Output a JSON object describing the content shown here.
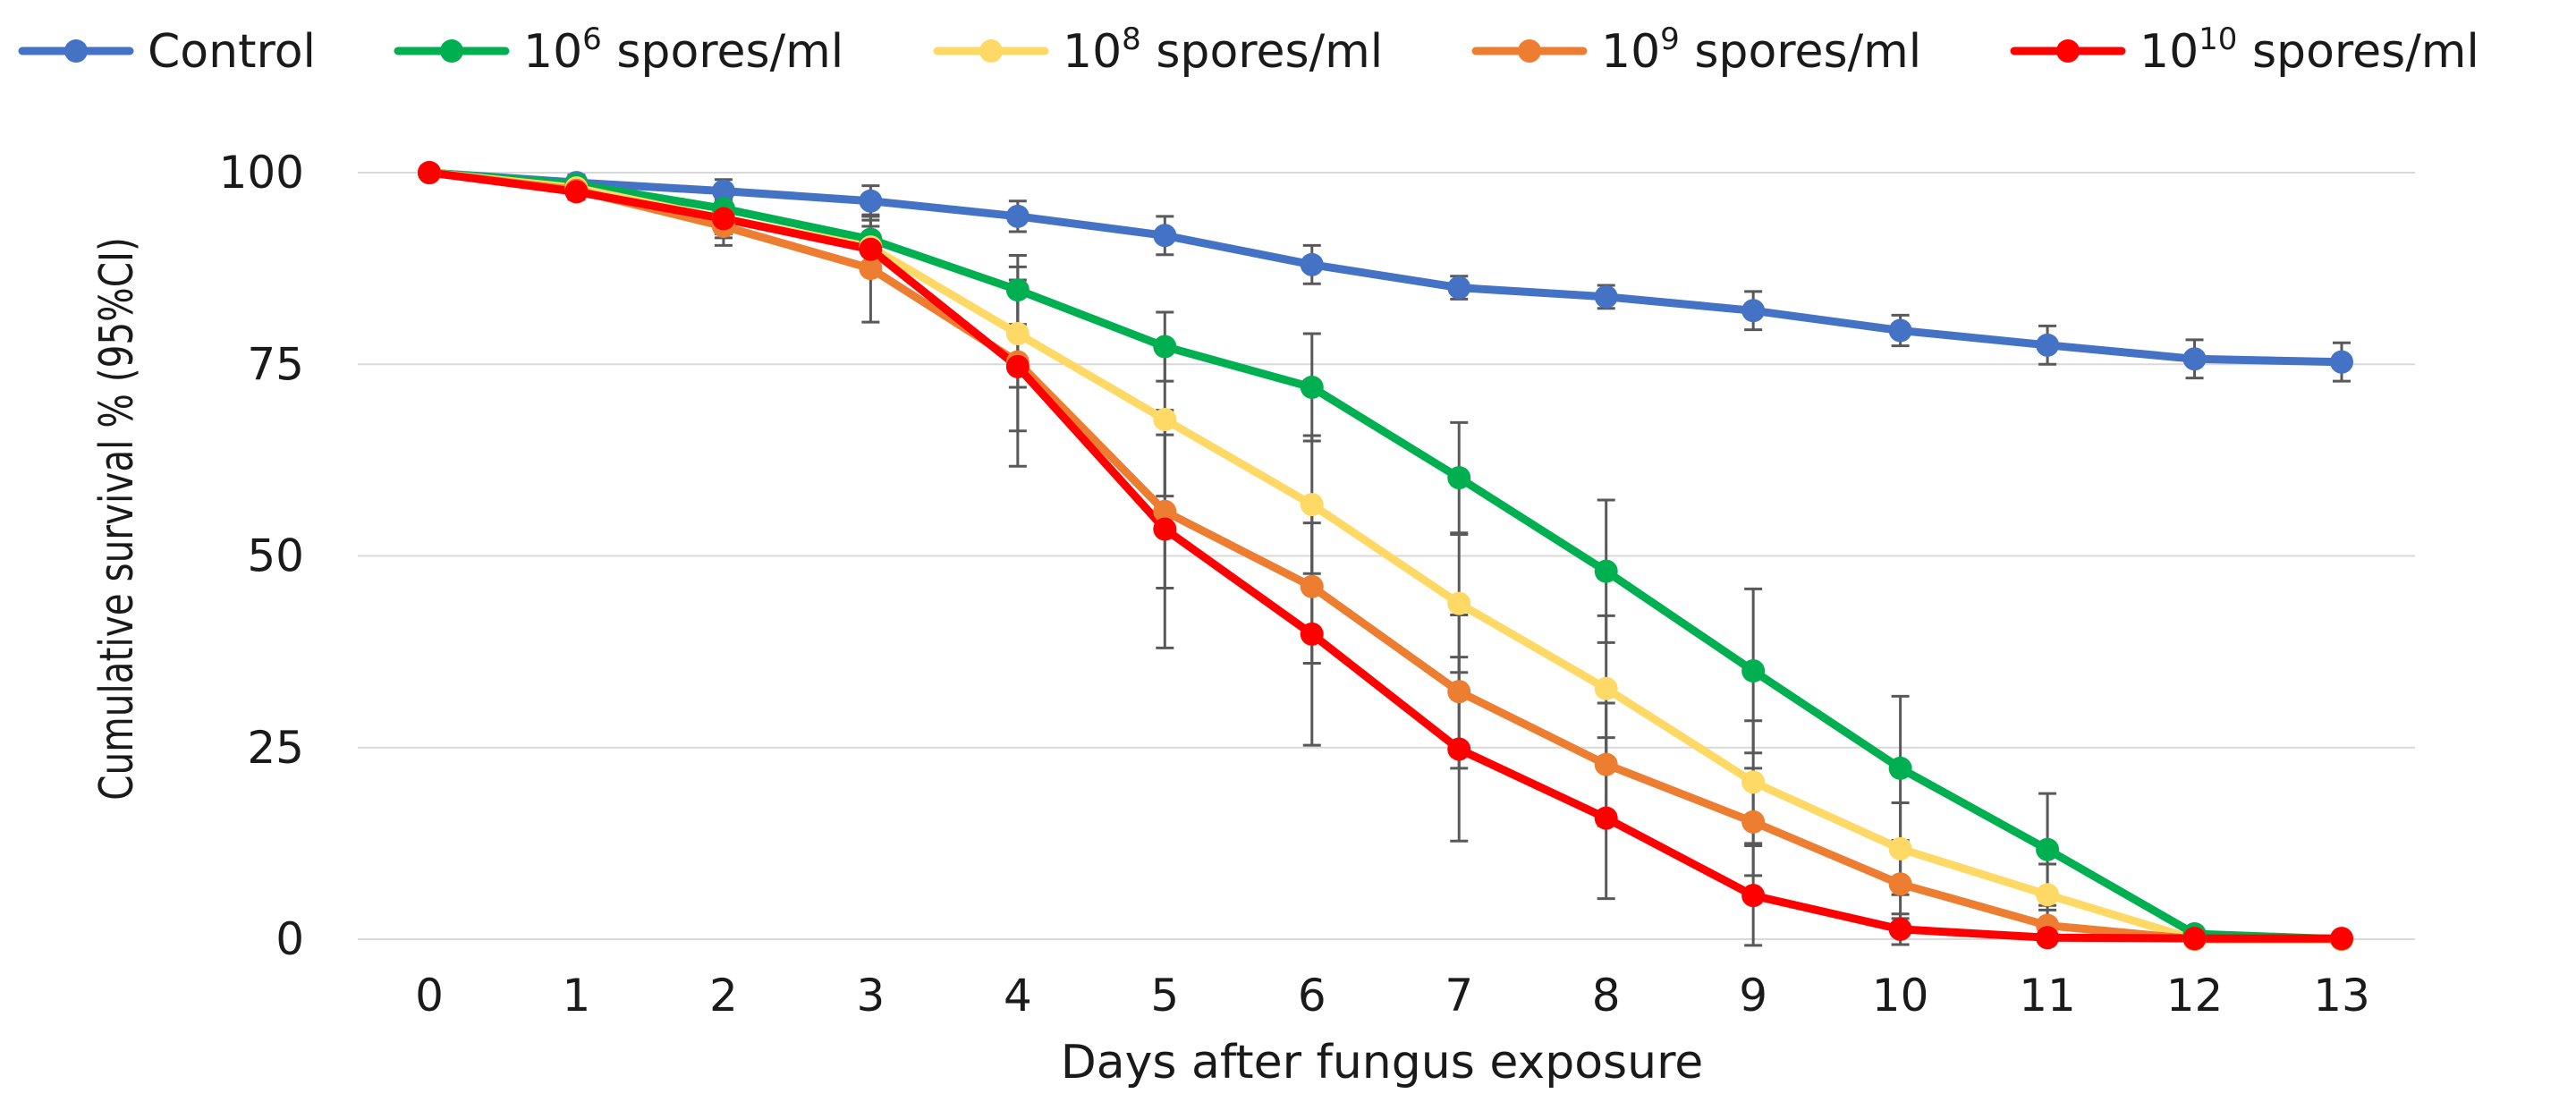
{
  "chart_data": {
    "type": "line",
    "title": "",
    "xlabel": "Days after fungus exposure",
    "ylabel": "Cumulative survival % (95%CI)",
    "x": [
      0,
      1,
      2,
      3,
      4,
      5,
      6,
      7,
      8,
      9,
      10,
      11,
      12,
      13
    ],
    "x_tick_labels": [
      "0",
      "1",
      "2",
      "3",
      "4",
      "5",
      "6",
      "7",
      "8",
      "9",
      "10",
      "11",
      "12",
      "13"
    ],
    "y_ticks": [
      0,
      25,
      50,
      75,
      100
    ],
    "y_tick_labels": [
      "0",
      "25",
      "50",
      "75",
      "100"
    ],
    "ylim": [
      0,
      100
    ],
    "xlim": [
      0,
      13
    ],
    "grid": "horizontal",
    "legend_position": "top",
    "series": [
      {
        "name": "Control",
        "legend_base": "Control",
        "legend_sup": "",
        "legend_rest": "",
        "color": "#4472C4",
        "values": [
          100,
          98.7,
          97.6,
          96.3,
          94.3,
          91.8,
          88.0,
          85.0,
          83.8,
          82.0,
          79.4,
          77.5,
          75.7,
          75.3
        ],
        "ci": [
          0,
          1.0,
          1.5,
          2.0,
          2.0,
          2.5,
          2.5,
          1.5,
          1.5,
          2.5,
          2.0,
          2.5,
          2.5,
          2.5
        ]
      },
      {
        "name": "10^6 spores/ml",
        "legend_base": "10",
        "legend_sup": "6",
        "legend_rest": " spores/ml",
        "color": "#00B050",
        "values": [
          100,
          98.5,
          95.3,
          91.3,
          84.7,
          77.3,
          72.0,
          60.2,
          48.0,
          35.0,
          22.3,
          11.7,
          0.7,
          0
        ],
        "ci": [
          0,
          1.0,
          2.0,
          3.0,
          4.5,
          4.5,
          7.0,
          7.2,
          9.3,
          10.7,
          9.4,
          7.3,
          0.5,
          0
        ]
      },
      {
        "name": "10^8 spores/ml",
        "legend_base": "10",
        "legend_sup": "8",
        "legend_rest": " spores/ml",
        "color": "#FFD966",
        "values": [
          100,
          98.0,
          94.0,
          90.3,
          79.0,
          67.8,
          56.7,
          43.8,
          32.7,
          20.5,
          11.8,
          5.8,
          0,
          0
        ],
        "ci": [
          0,
          1.0,
          2.0,
          3.5,
          7.0,
          10.0,
          9.0,
          9.0,
          9.5,
          8.0,
          6.0,
          4.0,
          0,
          0
        ]
      },
      {
        "name": "10^9 spores/ml",
        "legend_base": "10",
        "legend_sup": "9",
        "legend_rest": " spores/ml",
        "color": "#ED7D31",
        "values": [
          100,
          97.7,
          93.0,
          87.5,
          75.3,
          55.8,
          46.0,
          32.3,
          22.8,
          15.3,
          7.2,
          1.8,
          0,
          0
        ],
        "ci": [
          0,
          1.0,
          2.5,
          7.0,
          9.0,
          10.0,
          10.0,
          10.0,
          8.0,
          7.0,
          4.5,
          2.0,
          0,
          0
        ]
      },
      {
        "name": "10^10 spores/ml",
        "legend_base": "10",
        "legend_sup": "10",
        "legend_rest": " spores/ml",
        "color": "#FF0000",
        "values": [
          100,
          97.5,
          94.0,
          90.0,
          74.7,
          53.5,
          39.8,
          24.8,
          15.8,
          5.7,
          1.3,
          0.2,
          0.1,
          0.1
        ],
        "ci": [
          0,
          1.0,
          2.5,
          3.0,
          13.0,
          15.5,
          14.5,
          12.0,
          10.5,
          6.5,
          2.0,
          0.5,
          0,
          0
        ]
      }
    ]
  }
}
